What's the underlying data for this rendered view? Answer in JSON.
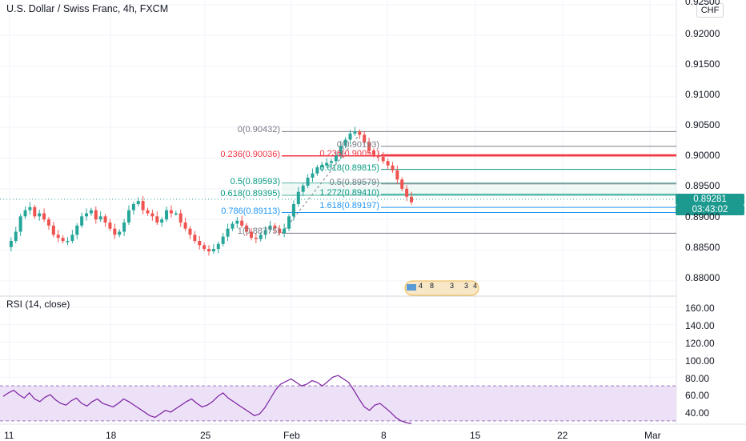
{
  "header": {
    "symbol_title": "U.S. Dollar / Swiss Franc, 4h, FXCM"
  },
  "axis": {
    "currency": "CHF",
    "last_price": "0.89281",
    "countdown": "03:43:02"
  },
  "rsi": {
    "title": "RSI (14, close)"
  },
  "colors": {
    "up": "#26a69a",
    "down": "#ef5350",
    "fib_gray": "#787b86",
    "fib_red": "#f23645",
    "fib_green": "#089981",
    "fib_blue": "#2196f3",
    "rsi_line": "#7b1fa2",
    "rsi_band": "#ede1f7"
  },
  "chart_data": [
    {
      "type": "candlestick",
      "title": "U.S. Dollar / Swiss Franc, 4h, FXCM",
      "ylim": [
        0.8775,
        0.9255
      ],
      "y_ticks": [
        "0.92500",
        "0.92000",
        "0.91500",
        "0.91000",
        "0.90500",
        "0.90000",
        "0.89500",
        "0.89000",
        "0.88500",
        "0.88000"
      ],
      "x_ticks": [
        "11",
        "18",
        "25",
        "Feb",
        "8",
        "15",
        "22",
        "Mar"
      ],
      "close_path": [
        0.8855,
        0.8865,
        0.888,
        0.8905,
        0.8915,
        0.892,
        0.8905,
        0.891,
        0.89,
        0.889,
        0.8875,
        0.887,
        0.8865,
        0.8865,
        0.8875,
        0.889,
        0.8905,
        0.891,
        0.8915,
        0.89,
        0.8905,
        0.8895,
        0.8885,
        0.8875,
        0.888,
        0.8895,
        0.8915,
        0.8925,
        0.893,
        0.8915,
        0.891,
        0.8905,
        0.8895,
        0.89,
        0.8915,
        0.891,
        0.891,
        0.8895,
        0.8885,
        0.8875,
        0.8865,
        0.8858,
        0.8852,
        0.8848,
        0.8852,
        0.886,
        0.8872,
        0.8885,
        0.8893,
        0.8898,
        0.889,
        0.888,
        0.887,
        0.8868,
        0.8875,
        0.8883,
        0.889,
        0.8885,
        0.8878,
        0.8885,
        0.8905,
        0.8925,
        0.8945,
        0.8955,
        0.8968,
        0.8975,
        0.8985,
        0.8988,
        0.8992,
        0.8995,
        0.9005,
        0.902,
        0.903,
        0.904,
        0.9043,
        0.9038,
        0.9025,
        0.9012,
        0.9005,
        0.9002,
        0.8995,
        0.8988,
        0.898,
        0.8965,
        0.895,
        0.8937,
        0.8928
      ],
      "annotations": [
        "4",
        "8",
        "3",
        "3",
        "4"
      ]
    },
    {
      "type": "fibonacci",
      "levels": [
        {
          "label": "0(0.90432)",
          "value": 0.90432,
          "color": "gray"
        },
        {
          "label": "0.236(0.90036)",
          "value": 0.90036,
          "color": "red"
        },
        {
          "label": "0.5(0.89593)",
          "value": 0.89593,
          "color": "green"
        },
        {
          "label": "0.618(0.89395)",
          "value": 0.89395,
          "color": "green"
        },
        {
          "label": "0.786(0.89113)",
          "value": 0.89113,
          "color": "blue"
        },
        {
          "label": "1(0.88775)",
          "value": 0.88775,
          "color": "gray"
        },
        {
          "label": "0(0.90193)",
          "value": 0.90193,
          "color": "gray"
        },
        {
          "label": "0.236(0.90051)",
          "value": 0.90051,
          "color": "red"
        },
        {
          "label": "0.618(0.89815)",
          "value": 0.89815,
          "color": "green"
        },
        {
          "label": "0.5(0.89579)",
          "value": 0.89579,
          "color": "gray"
        },
        {
          "label": "1.272(0.89410)",
          "value": 0.8941,
          "color": "green"
        },
        {
          "label": "1.618(0.89197)",
          "value": 0.89197,
          "color": "blue"
        }
      ]
    },
    {
      "type": "line",
      "title": "RSI (14, close)",
      "ylim": [
        28,
        170
      ],
      "y_ticks": [
        "160.00",
        "140.00",
        "120.00",
        "100.00",
        "80.00",
        "60.00",
        "40.00"
      ],
      "band": [
        30,
        70
      ],
      "values": [
        58,
        62,
        65,
        60,
        56,
        62,
        55,
        52,
        57,
        60,
        54,
        50,
        48,
        53,
        56,
        50,
        47,
        52,
        55,
        50,
        48,
        46,
        50,
        55,
        52,
        48,
        44,
        40,
        36,
        34,
        38,
        42,
        40,
        44,
        48,
        52,
        55,
        50,
        46,
        48,
        52,
        58,
        62,
        56,
        52,
        48,
        44,
        40,
        36,
        38,
        45,
        55,
        65,
        72,
        75,
        78,
        74,
        70,
        72,
        76,
        74,
        70,
        75,
        80,
        82,
        78,
        74,
        65,
        55,
        46,
        42,
        48,
        50,
        45,
        40,
        34,
        30,
        28,
        27
      ]
    }
  ]
}
